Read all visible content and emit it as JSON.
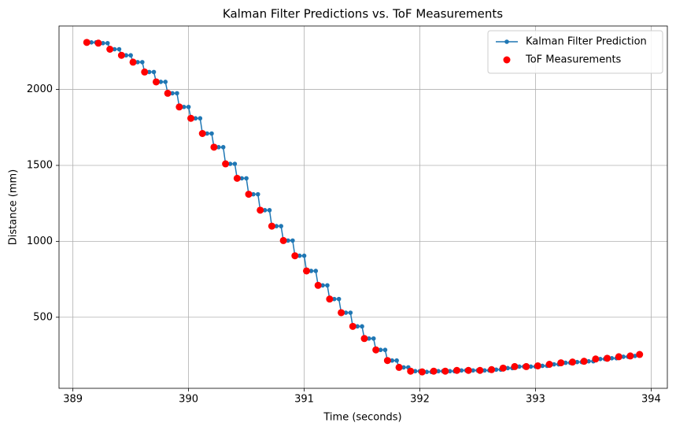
{
  "chart_data": {
    "type": "line_scatter",
    "title": "Kalman Filter Predictions vs. ToF Measurements",
    "x_label": "Time (seconds)",
    "y_label": "Distance (mm)",
    "xlim": [
      388.88,
      394.14
    ],
    "ylim": [
      32,
      2418
    ],
    "xticks": [
      389,
      390,
      391,
      392,
      393,
      394
    ],
    "yticks": [
      500,
      1000,
      1500,
      2000
    ],
    "grid": true,
    "legend": "upper right",
    "series": [
      {
        "name": "Kalman Filter Prediction",
        "color": "#1f77b4",
        "kind": "line",
        "x": [
          389.12,
          389.16,
          389.2,
          389.22,
          389.26,
          389.3,
          389.32,
          389.36,
          389.4,
          389.42,
          389.46,
          389.5,
          389.52,
          389.56,
          389.6,
          389.62,
          389.66,
          389.7,
          389.72,
          389.76,
          389.8,
          389.82,
          389.86,
          389.9,
          389.92,
          389.96,
          390,
          390.02,
          390.06,
          390.1,
          390.12,
          390.16,
          390.2,
          390.22,
          390.26,
          390.3,
          390.32,
          390.36,
          390.4,
          390.42,
          390.46,
          390.5,
          390.52,
          390.56,
          390.6,
          390.62,
          390.66,
          390.7,
          390.72,
          390.76,
          390.8,
          390.82,
          390.86,
          390.9,
          390.92,
          390.96,
          391,
          391.02,
          391.06,
          391.1,
          391.12,
          391.16,
          391.2,
          391.22,
          391.26,
          391.3,
          391.32,
          391.36,
          391.4,
          391.42,
          391.46,
          391.5,
          391.52,
          391.56,
          391.6,
          391.62,
          391.66,
          391.7,
          391.72,
          391.76,
          391.8,
          391.82,
          391.86,
          391.9,
          391.92,
          391.96,
          392,
          392.02,
          392.06,
          392.1,
          392.12,
          392.16,
          392.2,
          392.22,
          392.26,
          392.3,
          392.32,
          392.36,
          392.4,
          392.42,
          392.46,
          392.5,
          392.52,
          392.56,
          392.6,
          392.62,
          392.66,
          392.7,
          392.72,
          392.76,
          392.8,
          392.82,
          392.86,
          392.9,
          392.92,
          392.96,
          393,
          393.02,
          393.06,
          393.1,
          393.12,
          393.16,
          393.2,
          393.22,
          393.26,
          393.3,
          393.32,
          393.36,
          393.4,
          393.42,
          393.46,
          393.5,
          393.52,
          393.56,
          393.6,
          393.62,
          393.66,
          393.7,
          393.72,
          393.76,
          393.8,
          393.82,
          393.86,
          393.9
        ],
        "values": [
          2310,
          2310,
          2310,
          2305,
          2305,
          2305,
          2265,
          2265,
          2265,
          2225,
          2225,
          2225,
          2180,
          2180,
          2180,
          2115,
          2115,
          2115,
          2050,
          2050,
          2050,
          1975,
          1975,
          1975,
          1885,
          1885,
          1885,
          1810,
          1810,
          1810,
          1710,
          1710,
          1710,
          1620,
          1620,
          1620,
          1510,
          1510,
          1510,
          1415,
          1415,
          1415,
          1310,
          1310,
          1310,
          1205,
          1205,
          1205,
          1100,
          1100,
          1100,
          1005,
          1005,
          1005,
          905,
          905,
          905,
          805,
          805,
          805,
          710,
          710,
          710,
          620,
          620,
          620,
          530,
          530,
          530,
          440,
          440,
          440,
          360,
          360,
          360,
          285,
          285,
          285,
          215,
          215,
          215,
          170,
          170,
          170,
          145,
          145,
          145,
          140,
          140,
          140,
          145,
          145,
          145,
          145,
          145,
          145,
          150,
          150,
          150,
          150,
          150,
          150,
          150,
          150,
          150,
          155,
          155,
          155,
          165,
          165,
          165,
          175,
          175,
          175,
          175,
          175,
          175,
          180,
          180,
          180,
          190,
          190,
          190,
          200,
          200,
          200,
          205,
          205,
          205,
          210,
          210,
          210,
          225,
          225,
          225,
          230,
          230,
          230,
          240,
          240,
          240,
          245,
          245,
          255
        ]
      },
      {
        "name": "ToF Measurements",
        "color": "#ff0000",
        "kind": "scatter",
        "x": [
          389.12,
          389.22,
          389.32,
          389.42,
          389.52,
          389.62,
          389.72,
          389.82,
          389.92,
          390.02,
          390.12,
          390.22,
          390.32,
          390.42,
          390.52,
          390.62,
          390.72,
          390.82,
          390.92,
          391.02,
          391.12,
          391.22,
          391.32,
          391.42,
          391.52,
          391.62,
          391.72,
          391.82,
          391.92,
          392.02,
          392.12,
          392.22,
          392.32,
          392.42,
          392.52,
          392.62,
          392.72,
          392.82,
          392.92,
          393.02,
          393.12,
          393.22,
          393.32,
          393.42,
          393.52,
          393.62,
          393.72,
          393.82,
          393.9
        ],
        "values": [
          2310,
          2305,
          2265,
          2225,
          2180,
          2115,
          2050,
          1975,
          1885,
          1810,
          1710,
          1620,
          1510,
          1415,
          1310,
          1205,
          1100,
          1005,
          905,
          805,
          710,
          620,
          530,
          440,
          360,
          285,
          215,
          170,
          145,
          140,
          145,
          145,
          150,
          150,
          150,
          155,
          165,
          175,
          175,
          180,
          190,
          200,
          205,
          210,
          225,
          230,
          240,
          245,
          255
        ]
      }
    ]
  }
}
